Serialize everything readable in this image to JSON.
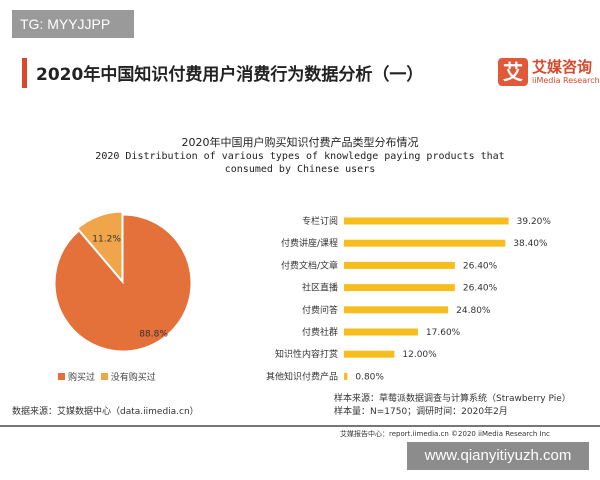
{
  "watermark_top": "TG: MYYJJPP",
  "header": {
    "title": "2020年中国知识付费用户消费行为数据分析（一）",
    "logo_mark": "艾",
    "logo_cn": "艾媒咨询",
    "logo_en": "iiMedia Research"
  },
  "chart_title": "2020年中国用户购买知识付费产品类型分布情况",
  "chart_subtitle": "2020 Distribution of various types of knowledge paying products that consumed by Chinese users",
  "colors": {
    "primary": "#e4703a",
    "secondary": "#f0a54a",
    "bar": "#f7bd1e",
    "accent": "#d9482b"
  },
  "chart_data": [
    {
      "type": "pie",
      "slices": [
        {
          "name": "购买过",
          "value": 88.8,
          "label": "88.8%"
        },
        {
          "name": "没有购买过",
          "value": 11.2,
          "label": "11.2%"
        }
      ],
      "legend": "bottom"
    },
    {
      "type": "bar",
      "orientation": "horizontal",
      "categories": [
        "专栏订阅",
        "付费讲座/课程",
        "付费文档/文章",
        "社区直播",
        "付费问答",
        "付费社群",
        "知识性内容打赏",
        "其他知识付费产品"
      ],
      "values": [
        39.2,
        38.4,
        26.4,
        26.4,
        24.8,
        17.6,
        12.0,
        0.8
      ],
      "labels": [
        "39.20%",
        "38.40%",
        "26.40%",
        "26.40%",
        "24.80%",
        "17.60%",
        "12.00%",
        "0.80%"
      ]
    }
  ],
  "source": "数据来源：艾媒数据中心（data.iimedia.cn）",
  "sample_source": "样本来源：草莓派数据调查与计算系统（Strawberry Pie）",
  "sample_size": "样本量：N=1750；调研时间：2020年2月",
  "footer": "艾媒报告中心：report.iimedia.cn  ©2020  iiMedia Research Inc",
  "watermark_bottom": "www.qianyitiyuzh.com"
}
